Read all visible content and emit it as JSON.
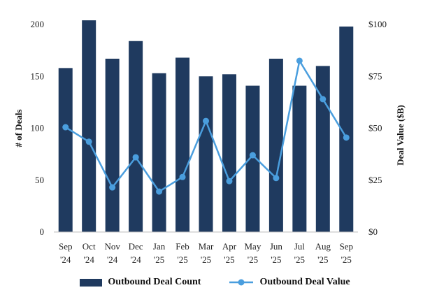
{
  "chart_data": {
    "type": "bar+line",
    "categories": [
      {
        "month": "Sep",
        "year": "'24"
      },
      {
        "month": "Oct",
        "year": "'24"
      },
      {
        "month": "Nov",
        "year": "'24"
      },
      {
        "month": "Dec",
        "year": "'24"
      },
      {
        "month": "Jan",
        "year": "'25"
      },
      {
        "month": "Feb",
        "year": "'25"
      },
      {
        "month": "Mar",
        "year": "'25"
      },
      {
        "month": "Apr",
        "year": "'25"
      },
      {
        "month": "May",
        "year": "'25"
      },
      {
        "month": "Jun",
        "year": "'25"
      },
      {
        "month": "Jul",
        "year": "'25"
      },
      {
        "month": "Aug",
        "year": "'25"
      },
      {
        "month": "Sep",
        "year": "'25"
      }
    ],
    "series": [
      {
        "name": "Outbound Deal Count",
        "type": "bar",
        "axis": "left",
        "color": "#1f3a5f",
        "values": [
          158,
          204,
          167,
          184,
          153,
          168,
          150,
          152,
          141,
          167,
          141,
          160,
          198
        ]
      },
      {
        "name": "Outbound Deal Value",
        "type": "line",
        "axis": "right",
        "color": "#4a9ede",
        "values": [
          50.5,
          43.5,
          21.5,
          36,
          19.5,
          26.5,
          53.5,
          24.5,
          37,
          26,
          82.5,
          64,
          45.5
        ]
      }
    ],
    "y_left": {
      "label": "# of Deals",
      "range": [
        0,
        200
      ],
      "ticks": [
        0,
        50,
        100,
        150,
        200
      ],
      "tick_labels": [
        "0",
        "50",
        "100",
        "150",
        "200"
      ]
    },
    "y_right": {
      "label": "Deal Value ($B)",
      "range": [
        0,
        100
      ],
      "ticks": [
        0,
        25,
        50,
        75,
        100
      ],
      "tick_labels": [
        "$0",
        "$25",
        "$50",
        "$75",
        "$100"
      ]
    },
    "grid": false,
    "legend_position": "bottom"
  }
}
